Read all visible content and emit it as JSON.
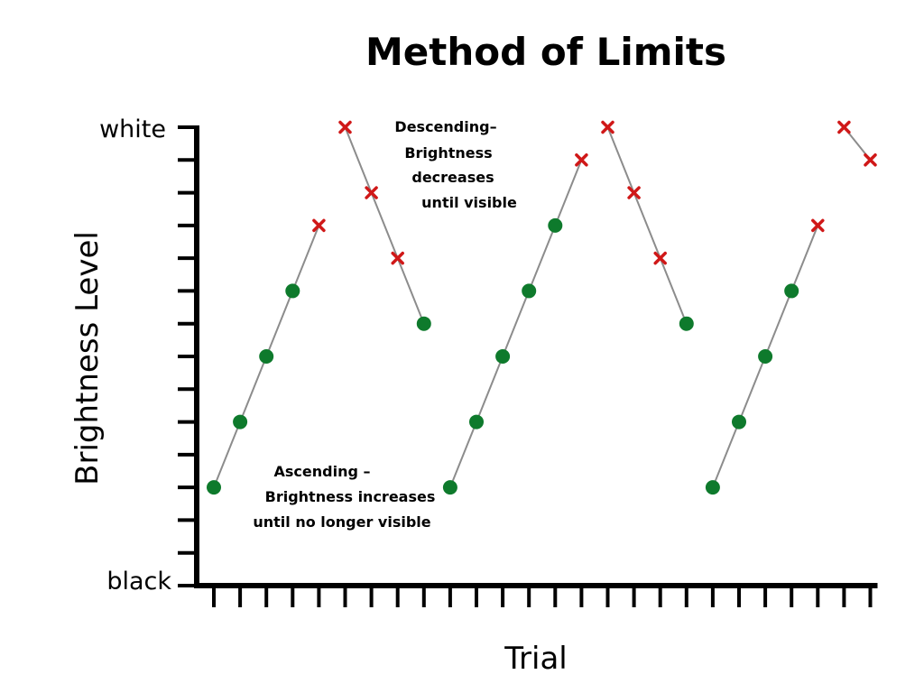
{
  "chart_data": {
    "type": "scatter",
    "title": "Method of Limits",
    "xlabel": "Trial",
    "ylabel": "Brightness Level",
    "y_tick_labels": {
      "top": "white",
      "bottom": "black"
    },
    "x_range": [
      1,
      26
    ],
    "y_range": [
      0,
      14
    ],
    "legend": "none",
    "grid": false,
    "colors": {
      "visible": "#0e7a2c",
      "not_visible": "#d01818",
      "line": "#8c8c8c",
      "axis": "#000000"
    },
    "series": [
      {
        "direction": "ascending",
        "points": [
          {
            "x": 1,
            "y": 3,
            "marker": "dot"
          },
          {
            "x": 2,
            "y": 5,
            "marker": "dot"
          },
          {
            "x": 3,
            "y": 7,
            "marker": "dot"
          },
          {
            "x": 4,
            "y": 9,
            "marker": "dot"
          },
          {
            "x": 5,
            "y": 11,
            "marker": "x"
          }
        ]
      },
      {
        "direction": "descending",
        "points": [
          {
            "x": 6,
            "y": 14,
            "marker": "x"
          },
          {
            "x": 7,
            "y": 12,
            "marker": "x"
          },
          {
            "x": 8,
            "y": 10,
            "marker": "x"
          },
          {
            "x": 9,
            "y": 8,
            "marker": "dot"
          }
        ]
      },
      {
        "direction": "ascending",
        "points": [
          {
            "x": 10,
            "y": 3,
            "marker": "dot"
          },
          {
            "x": 11,
            "y": 5,
            "marker": "dot"
          },
          {
            "x": 12,
            "y": 7,
            "marker": "dot"
          },
          {
            "x": 13,
            "y": 9,
            "marker": "dot"
          },
          {
            "x": 14,
            "y": 11,
            "marker": "dot"
          },
          {
            "x": 15,
            "y": 13,
            "marker": "x"
          }
        ]
      },
      {
        "direction": "descending",
        "points": [
          {
            "x": 16,
            "y": 14,
            "marker": "x"
          },
          {
            "x": 17,
            "y": 12,
            "marker": "x"
          },
          {
            "x": 18,
            "y": 10,
            "marker": "x"
          },
          {
            "x": 19,
            "y": 8,
            "marker": "dot"
          }
        ]
      },
      {
        "direction": "ascending",
        "points": [
          {
            "x": 20,
            "y": 3,
            "marker": "dot"
          },
          {
            "x": 21,
            "y": 5,
            "marker": "dot"
          },
          {
            "x": 22,
            "y": 7,
            "marker": "dot"
          },
          {
            "x": 23,
            "y": 9,
            "marker": "dot"
          },
          {
            "x": 24,
            "y": 11,
            "marker": "x"
          }
        ]
      },
      {
        "direction": "descending",
        "points": [
          {
            "x": 25,
            "y": 14,
            "marker": "x"
          },
          {
            "x": 26,
            "y": 13,
            "marker": "x"
          }
        ]
      }
    ],
    "annotations": [
      {
        "name": "descending",
        "lines": [
          {
            "text": "Descending–",
            "bold": false
          },
          {
            "text": "Brightness",
            "bold": false
          },
          {
            "text": "decreases",
            "bold": false
          },
          {
            "text": "until visible",
            "bold": true
          }
        ]
      },
      {
        "name": "ascending",
        "lines": [
          {
            "text": "Ascending –",
            "bold": false
          },
          {
            "text": "Brightness increases",
            "bold": false
          },
          {
            "text": "until no longer visible",
            "bold": true
          }
        ]
      }
    ]
  }
}
